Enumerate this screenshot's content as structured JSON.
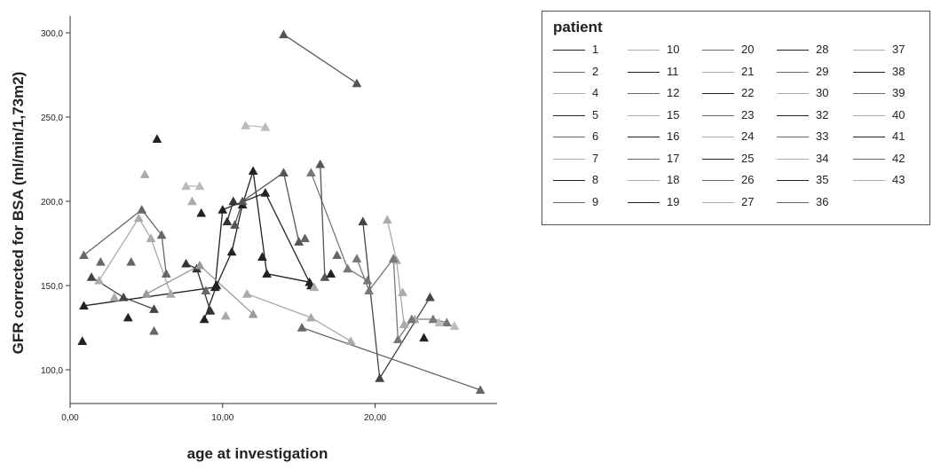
{
  "chart_data": {
    "type": "line",
    "title": "",
    "xlabel": "age at investigation",
    "ylabel": "GFR corrected for BSA (ml/min/1,73m2)",
    "xlim": [
      0,
      28
    ],
    "ylim": [
      80,
      310
    ],
    "x_ticks": [
      0,
      10,
      20
    ],
    "x_tick_labels": [
      "0,00",
      "10,00",
      "20,00"
    ],
    "y_ticks": [
      100,
      150,
      200,
      250,
      300
    ],
    "y_tick_labels": [
      "100,0",
      "150,0",
      "200,0",
      "250,0",
      "300,0"
    ],
    "marker": "triangle",
    "grid": false,
    "legend": {
      "title": "patient",
      "placement": "right",
      "entries": [
        {
          "label": "1",
          "color": "#222222"
        },
        {
          "label": "2",
          "color": "#666666"
        },
        {
          "label": "4",
          "color": "#aaaaaa"
        },
        {
          "label": "5",
          "color": "#222222"
        },
        {
          "label": "6",
          "color": "#666666"
        },
        {
          "label": "7",
          "color": "#aaaaaa"
        },
        {
          "label": "8",
          "color": "#222222"
        },
        {
          "label": "9",
          "color": "#666666"
        },
        {
          "label": "10",
          "color": "#aaaaaa"
        },
        {
          "label": "11",
          "color": "#222222"
        },
        {
          "label": "12",
          "color": "#666666"
        },
        {
          "label": "15",
          "color": "#aaaaaa"
        },
        {
          "label": "16",
          "color": "#222222"
        },
        {
          "label": "17",
          "color": "#666666"
        },
        {
          "label": "18",
          "color": "#aaaaaa"
        },
        {
          "label": "19",
          "color": "#222222"
        },
        {
          "label": "20",
          "color": "#666666"
        },
        {
          "label": "21",
          "color": "#aaaaaa"
        },
        {
          "label": "22",
          "color": "#222222"
        },
        {
          "label": "23",
          "color": "#666666"
        },
        {
          "label": "24",
          "color": "#aaaaaa"
        },
        {
          "label": "25",
          "color": "#222222"
        },
        {
          "label": "26",
          "color": "#666666"
        },
        {
          "label": "27",
          "color": "#aaaaaa"
        },
        {
          "label": "28",
          "color": "#222222"
        },
        {
          "label": "29",
          "color": "#666666"
        },
        {
          "label": "30",
          "color": "#aaaaaa"
        },
        {
          "label": "32",
          "color": "#222222"
        },
        {
          "label": "33",
          "color": "#666666"
        },
        {
          "label": "34",
          "color": "#aaaaaa"
        },
        {
          "label": "35",
          "color": "#222222"
        },
        {
          "label": "36",
          "color": "#666666"
        },
        {
          "label": "37",
          "color": "#aaaaaa"
        },
        {
          "label": "38",
          "color": "#222222"
        },
        {
          "label": "39",
          "color": "#666666"
        },
        {
          "label": "40",
          "color": "#aaaaaa"
        },
        {
          "label": "41",
          "color": "#222222"
        },
        {
          "label": "42",
          "color": "#666666"
        },
        {
          "label": "43",
          "color": "#aaaaaa"
        }
      ]
    },
    "series": [
      {
        "color": "#555555",
        "points": [
          [
            14.0,
            299
          ],
          [
            18.8,
            270
          ]
        ]
      },
      {
        "color": "#bbbbbb",
        "points": [
          [
            11.5,
            245
          ],
          [
            12.8,
            244
          ]
        ]
      },
      {
        "color": "#bbbbbb",
        "points": [
          [
            7.6,
            209
          ],
          [
            8.5,
            209
          ]
        ]
      },
      {
        "color": "#222222",
        "points": [
          [
            0.9,
            138
          ],
          [
            9.5,
            149
          ],
          [
            10.0,
            195
          ],
          [
            12.8,
            205
          ],
          [
            15.8,
            150
          ]
        ]
      },
      {
        "color": "#444444",
        "points": [
          [
            1.4,
            155
          ],
          [
            3.5,
            143
          ],
          [
            5.5,
            136
          ]
        ]
      },
      {
        "color": "#666666",
        "points": [
          [
            0.9,
            168
          ],
          [
            4.7,
            195
          ],
          [
            6.0,
            180
          ],
          [
            6.3,
            157
          ]
        ]
      },
      {
        "color": "#aaaaaa",
        "points": [
          [
            1.9,
            153
          ],
          [
            4.5,
            190
          ],
          [
            5.3,
            178
          ],
          [
            6.6,
            145
          ]
        ]
      },
      {
        "color": "#333333",
        "points": [
          [
            7.6,
            163
          ],
          [
            8.3,
            160
          ],
          [
            9.2,
            135
          ]
        ]
      },
      {
        "color": "#999999",
        "points": [
          [
            5.0,
            145
          ],
          [
            8.5,
            162
          ],
          [
            12.0,
            133
          ]
        ]
      },
      {
        "color": "#222222",
        "points": [
          [
            8.8,
            130
          ],
          [
            9.6,
            150
          ],
          [
            10.6,
            170
          ],
          [
            11.3,
            198
          ],
          [
            12.0,
            218
          ],
          [
            12.9,
            157
          ],
          [
            15.7,
            152
          ]
        ]
      },
      {
        "color": "#333333",
        "points": [
          [
            10.3,
            188
          ],
          [
            10.7,
            200
          ]
        ]
      },
      {
        "color": "#555555",
        "points": [
          [
            10.8,
            186
          ],
          [
            11.3,
            200
          ],
          [
            14.0,
            217
          ],
          [
            15.0,
            176
          ]
        ]
      },
      {
        "color": "#777777",
        "points": [
          [
            15.8,
            217
          ],
          [
            18.2,
            160
          ],
          [
            19.5,
            153
          ]
        ]
      },
      {
        "color": "#555555",
        "points": [
          [
            16.4,
            222
          ],
          [
            16.7,
            155
          ]
        ]
      },
      {
        "color": "#444444",
        "points": [
          [
            19.2,
            188
          ],
          [
            20.3,
            95
          ],
          [
            23.6,
            143
          ]
        ]
      },
      {
        "color": "#aaaaaa",
        "points": [
          [
            20.8,
            189
          ],
          [
            21.4,
            165
          ],
          [
            21.9,
            127
          ],
          [
            22.6,
            130
          ]
        ]
      },
      {
        "color": "#777777",
        "points": [
          [
            18.8,
            166
          ],
          [
            19.6,
            147
          ],
          [
            21.2,
            166
          ],
          [
            21.5,
            118
          ],
          [
            22.4,
            130
          ],
          [
            23.8,
            130
          ],
          [
            24.7,
            128
          ]
        ]
      },
      {
        "color": "#666666",
        "points": [
          [
            15.2,
            125
          ],
          [
            26.9,
            88
          ]
        ]
      },
      {
        "color": "#aaaaaa",
        "points": [
          [
            11.6,
            145
          ],
          [
            15.8,
            131
          ],
          [
            18.4,
            117
          ]
        ]
      },
      {
        "color": "#bbbbbb",
        "points": [
          [
            24.2,
            128
          ],
          [
            25.2,
            126
          ]
        ]
      }
    ],
    "scatter_points": [
      [
        0.8,
        117
      ],
      [
        2.0,
        164
      ],
      [
        2.9,
        143
      ],
      [
        3.8,
        131
      ],
      [
        4.0,
        164
      ],
      [
        4.9,
        216
      ],
      [
        5.7,
        237
      ],
      [
        5.5,
        123
      ],
      [
        8.0,
        200
      ],
      [
        8.6,
        193
      ],
      [
        8.9,
        147
      ],
      [
        10.2,
        132
      ],
      [
        12.6,
        167
      ],
      [
        15.4,
        178
      ],
      [
        16.0,
        149
      ],
      [
        17.1,
        157
      ],
      [
        17.5,
        168
      ],
      [
        21.8,
        146
      ],
      [
        23.2,
        119
      ]
    ]
  }
}
